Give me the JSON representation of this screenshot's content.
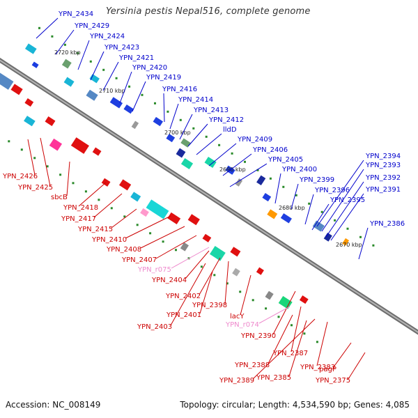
{
  "genome": {
    "title": "Yersinia pestis Nepal516, complete genome",
    "accession": "Accession: NC_008149",
    "summary": "Topology: circular; Length: 4,534,590 bp; Genes: 4,085"
  },
  "colors": {
    "forward_label": "#0000cc",
    "reverse_label": "#cc0000",
    "rna_label": "#ee88cc",
    "backbone": "#888888",
    "forward_gene": "#1f3fe0",
    "reverse_gene": "#e01010"
  },
  "ticks": [
    "2720 kbp",
    "2710 kbp",
    "2700 kbp",
    "2690 kbp",
    "2680 kbp",
    "2670 kbp"
  ],
  "labels_forward": [
    "YPN_2434",
    "YPN_2429",
    "YPN_2424",
    "YPN_2423",
    "YPN_2421",
    "YPN_2420",
    "YPN_2419",
    "YPN_2416",
    "YPN_2414",
    "YPN_2413",
    "YPN_2412",
    "lldD",
    "YPN_2409",
    "YPN_2406",
    "YPN_2405",
    "YPN_2400",
    "YPN_2399",
    "YPN_2396",
    "YPN_2395",
    "YPN_2394",
    "YPN_2393",
    "YPN_2392",
    "YPN_2391",
    "YPN_2386"
  ],
  "labels_reverse": [
    "YPN_2426",
    "YPN_2425",
    "sbcB",
    "YPN_2418",
    "YPN_2417",
    "YPN_2415",
    "YPN_2410",
    "YPN_2408",
    "YPN_2407",
    "YPN_2404",
    "YPN_2402",
    "YPN_2398",
    "YPN_2401",
    "YPN_2403",
    "lacY",
    "YPN_2390",
    "YPN_2387",
    "YPN_2388",
    "YPN_2383",
    "YPN_2385",
    "YPN_2389",
    "pagP",
    "YPN_2375"
  ],
  "labels_rna": [
    "YPN_r075",
    "YPN_r074"
  ]
}
